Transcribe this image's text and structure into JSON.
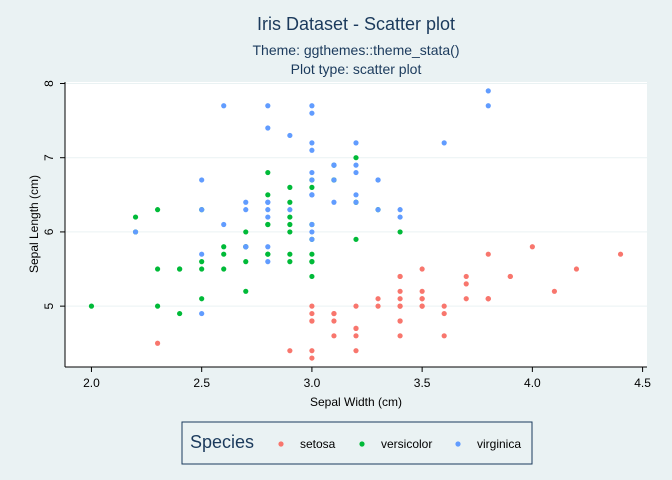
{
  "chart_data": {
    "type": "scatter",
    "title": "Iris Dataset - Scatter plot",
    "subtitle": [
      "Theme: ggthemes::theme_stata()",
      "Plot type: scatter plot"
    ],
    "xlabel": "Sepal Width (cm)",
    "ylabel": "Sepal Length (cm)",
    "xlim": [
      1.88,
      4.52
    ],
    "ylim": [
      4.18,
      8.02
    ],
    "xticks": [
      2.0,
      2.5,
      3.0,
      3.5,
      4.0,
      4.5
    ],
    "xtick_labels": [
      "2.0",
      "2.5",
      "3.0",
      "3.5",
      "4.0",
      "4.5"
    ],
    "yticks": [
      5,
      6,
      7,
      8
    ],
    "ytick_labels": [
      "5",
      "6",
      "7",
      "8"
    ],
    "grid": "horizontal",
    "legend": {
      "title": "Species",
      "placement": "bottom",
      "entries": [
        "setosa",
        "versicolor",
        "virginica"
      ]
    },
    "colors": {
      "background": "#eaf2f3",
      "plot_background": "#ffffff",
      "title": "#1b3a5c",
      "setosa": "#f8766d",
      "versicolor": "#00ba38",
      "virginica": "#619cff"
    },
    "series": [
      {
        "name": "setosa",
        "x": [
          3.5,
          3.0,
          3.2,
          3.1,
          3.6,
          3.9,
          3.4,
          3.4,
          2.9,
          3.1,
          3.7,
          3.4,
          3.0,
          3.0,
          4.0,
          4.4,
          3.9,
          3.5,
          3.8,
          3.8,
          3.4,
          3.7,
          3.6,
          3.3,
          3.4,
          3.0,
          3.4,
          3.5,
          3.4,
          3.2,
          3.1,
          3.4,
          4.1,
          4.2,
          3.1,
          3.2,
          3.5,
          3.6,
          3.0,
          3.4,
          3.5,
          2.3,
          3.2,
          3.5,
          3.8,
          3.0,
          3.8,
          3.2,
          3.7,
          3.3
        ],
        "y": [
          5.1,
          4.9,
          4.7,
          4.6,
          5.0,
          5.4,
          4.6,
          5.0,
          4.4,
          4.9,
          5.4,
          4.8,
          4.8,
          4.3,
          5.8,
          5.7,
          5.4,
          5.1,
          5.7,
          5.1,
          5.4,
          5.1,
          4.6,
          5.1,
          4.8,
          5.0,
          5.0,
          5.2,
          5.2,
          4.7,
          4.8,
          5.4,
          5.2,
          5.5,
          4.9,
          5.0,
          5.5,
          4.9,
          4.4,
          5.1,
          5.0,
          4.5,
          4.4,
          5.0,
          5.1,
          4.8,
          5.1,
          4.6,
          5.3,
          5.0
        ]
      },
      {
        "name": "versicolor",
        "x": [
          3.2,
          3.2,
          3.1,
          2.3,
          2.8,
          2.8,
          3.3,
          2.4,
          2.9,
          2.7,
          2.0,
          3.0,
          2.2,
          2.9,
          2.9,
          3.1,
          3.0,
          2.7,
          2.2,
          2.5,
          3.2,
          2.8,
          2.5,
          2.8,
          2.9,
          3.0,
          2.8,
          3.0,
          2.9,
          2.6,
          2.4,
          2.4,
          2.7,
          2.7,
          3.0,
          3.4,
          3.1,
          2.3,
          3.0,
          2.5,
          2.6,
          3.0,
          2.6,
          2.3,
          2.7,
          3.0,
          2.9,
          2.9,
          2.5,
          2.8
        ],
        "y": [
          7.0,
          6.4,
          6.9,
          5.5,
          6.5,
          5.7,
          6.3,
          4.9,
          6.6,
          5.2,
          5.0,
          5.9,
          6.0,
          6.1,
          5.6,
          6.7,
          5.6,
          5.8,
          6.2,
          5.6,
          5.9,
          6.1,
          6.3,
          6.1,
          6.4,
          6.6,
          6.8,
          6.7,
          6.0,
          5.7,
          5.5,
          5.5,
          5.8,
          6.0,
          5.4,
          6.0,
          6.7,
          6.3,
          5.6,
          5.5,
          5.5,
          6.1,
          5.8,
          5.0,
          5.6,
          5.7,
          5.7,
          6.2,
          5.1,
          5.7
        ]
      },
      {
        "name": "virginica",
        "x": [
          3.3,
          2.7,
          3.0,
          2.9,
          3.0,
          3.0,
          2.5,
          2.9,
          2.5,
          3.6,
          3.2,
          2.7,
          3.0,
          2.5,
          2.8,
          3.2,
          3.0,
          3.8,
          2.6,
          2.2,
          3.2,
          2.8,
          2.8,
          2.7,
          3.3,
          3.2,
          2.8,
          3.0,
          2.8,
          3.0,
          2.8,
          3.8,
          2.8,
          2.8,
          2.6,
          3.0,
          3.4,
          3.1,
          3.0,
          3.1,
          3.1,
          3.1,
          2.7,
          3.2,
          3.3,
          3.0,
          2.5,
          3.0,
          3.4,
          3.0
        ],
        "y": [
          6.3,
          5.8,
          7.1,
          6.3,
          6.5,
          7.6,
          4.9,
          7.3,
          6.7,
          7.2,
          6.5,
          6.4,
          6.8,
          5.7,
          5.8,
          6.4,
          6.5,
          7.7,
          7.7,
          6.0,
          6.9,
          5.6,
          7.7,
          6.3,
          6.7,
          7.2,
          6.2,
          6.1,
          6.4,
          7.2,
          7.4,
          7.9,
          6.4,
          6.3,
          6.1,
          7.7,
          6.3,
          6.4,
          6.0,
          6.9,
          6.7,
          6.9,
          5.8,
          6.8,
          6.7,
          6.7,
          6.3,
          6.5,
          6.2,
          5.9
        ]
      }
    ]
  }
}
